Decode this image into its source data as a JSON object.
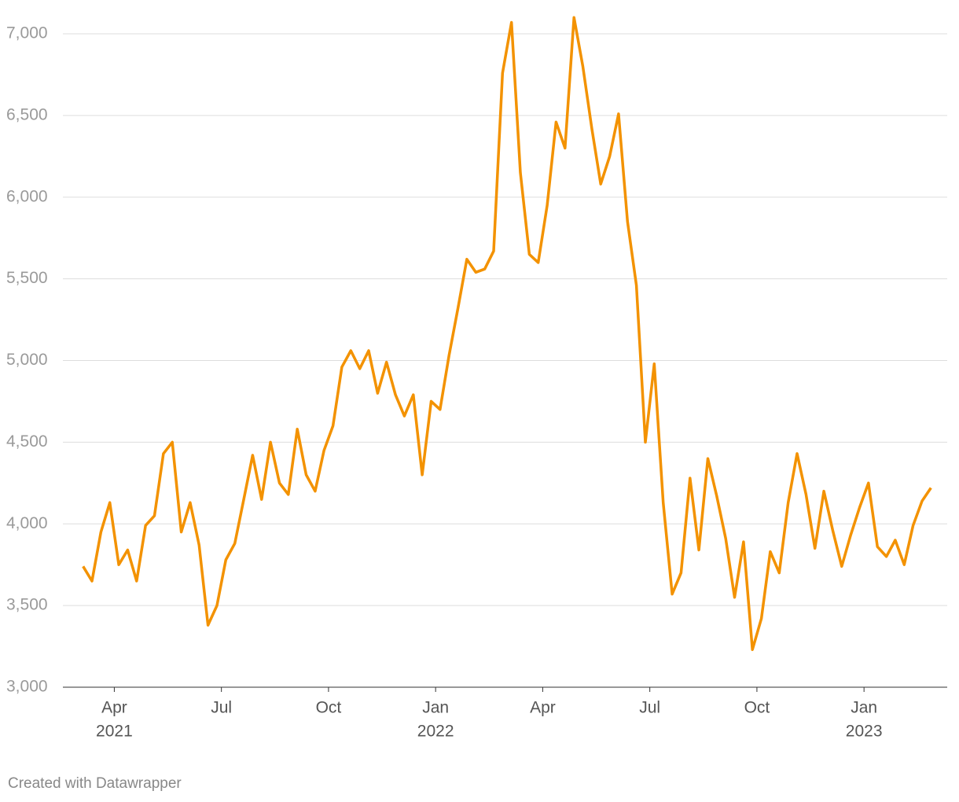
{
  "chart_data": {
    "type": "line",
    "x": [
      "2021-03",
      "2021-03",
      "2021-03",
      "2021-03",
      "2021-04",
      "2021-04",
      "2021-04",
      "2021-04",
      "2021-05",
      "2021-05",
      "2021-05",
      "2021-05",
      "2021-06",
      "2021-06",
      "2021-06",
      "2021-06",
      "2021-07",
      "2021-07",
      "2021-07",
      "2021-07",
      "2021-08",
      "2021-08",
      "2021-08",
      "2021-08",
      "2021-09",
      "2021-09",
      "2021-09",
      "2021-09",
      "2021-10",
      "2021-10",
      "2021-10",
      "2021-10",
      "2021-11",
      "2021-11",
      "2021-11",
      "2021-11",
      "2021-12",
      "2021-12",
      "2021-12",
      "2021-12",
      "2022-01",
      "2022-01",
      "2022-01",
      "2022-01",
      "2022-02",
      "2022-02",
      "2022-02",
      "2022-02",
      "2022-03",
      "2022-03",
      "2022-03",
      "2022-03",
      "2022-04",
      "2022-04",
      "2022-04",
      "2022-04",
      "2022-05",
      "2022-05",
      "2022-05",
      "2022-05",
      "2022-06",
      "2022-06",
      "2022-06",
      "2022-06",
      "2022-07",
      "2022-07",
      "2022-07",
      "2022-07",
      "2022-08",
      "2022-08",
      "2022-08",
      "2022-08",
      "2022-09",
      "2022-09",
      "2022-09",
      "2022-09",
      "2022-10",
      "2022-10",
      "2022-10",
      "2022-10",
      "2022-11",
      "2022-11",
      "2022-11",
      "2022-11",
      "2022-12",
      "2022-12",
      "2022-12",
      "2022-12",
      "2023-01",
      "2023-01",
      "2023-01",
      "2023-01",
      "2023-02",
      "2023-02",
      "2023-02",
      "2023-02"
    ],
    "values": [
      3740,
      3650,
      3950,
      4130,
      3750,
      3840,
      3650,
      3990,
      4050,
      4430,
      4500,
      3950,
      4130,
      3870,
      3380,
      3500,
      3780,
      3880,
      4150,
      4420,
      4150,
      4500,
      4250,
      4180,
      4580,
      4300,
      4200,
      4450,
      4600,
      4960,
      5060,
      4950,
      5060,
      4800,
      4990,
      4790,
      4660,
      4790,
      4300,
      4750,
      4700,
      5030,
      5320,
      5620,
      5540,
      5560,
      5670,
      6760,
      7070,
      6150,
      5650,
      5600,
      5950,
      6460,
      6300,
      7100,
      6800,
      6420,
      6080,
      6250,
      6510,
      5850,
      5460,
      4500,
      4980,
      4130,
      3570,
      3700,
      4280,
      3840,
      4400,
      4170,
      3910,
      3550,
      3890,
      3230,
      3420,
      3830,
      3700,
      4130,
      4430,
      4180,
      3850,
      4200,
      3960,
      3740,
      3930,
      4100,
      4250,
      3860,
      3800,
      3900,
      3750,
      3990,
      4140,
      4220
    ],
    "color": "#f39200",
    "ylim": [
      3000,
      7000
    ],
    "yticks": [
      {
        "value": 3000,
        "label": "3,000"
      },
      {
        "value": 3500,
        "label": "3,500"
      },
      {
        "value": 4000,
        "label": "4,000"
      },
      {
        "value": 4500,
        "label": "4,500"
      },
      {
        "value": 5000,
        "label": "5,000"
      },
      {
        "value": 5500,
        "label": "5,500"
      },
      {
        "value": 6000,
        "label": "6,000"
      },
      {
        "value": 6500,
        "label": "6,500"
      },
      {
        "value": 7000,
        "label": "7,000"
      }
    ],
    "xticks": [
      {
        "value": "2021-04",
        "label": "Apr",
        "year": "2021"
      },
      {
        "value": "2021-07",
        "label": "Jul"
      },
      {
        "value": "2021-10",
        "label": "Oct"
      },
      {
        "value": "2022-01",
        "label": "Jan",
        "year": "2022"
      },
      {
        "value": "2022-04",
        "label": "Apr"
      },
      {
        "value": "2022-07",
        "label": "Jul"
      },
      {
        "value": "2022-10",
        "label": "Oct"
      },
      {
        "value": "2023-01",
        "label": "Jan",
        "year": "2023"
      }
    ],
    "grid": true,
    "credit": "Created with Datawrapper"
  }
}
